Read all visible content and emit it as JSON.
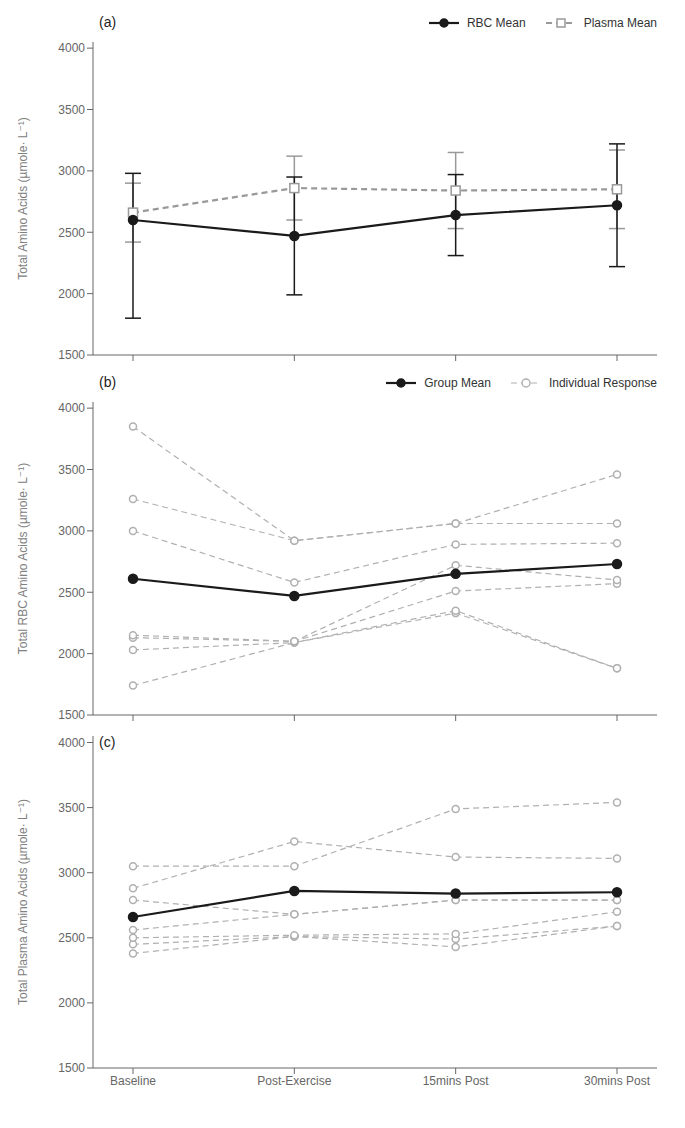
{
  "chart_data": [
    {
      "type": "line",
      "annotations": [
        "(a)"
      ],
      "y_label": "Total Amino Acids (µmole· L⁻¹)",
      "categories": [
        null,
        null,
        null,
        null
      ],
      "ylim": [
        1500,
        4050
      ],
      "yticks": [
        1500,
        2000,
        2500,
        3000,
        3500,
        4000
      ],
      "grid": false,
      "legend": "upper right",
      "series": [
        {
          "name": "RBC Mean",
          "color": "#1a1a1a",
          "marker": "circle",
          "line_style": "solid",
          "values": [
            2600,
            2470,
            2640,
            2720
          ],
          "err_lo": [
            800,
            480,
            330,
            500
          ],
          "err_hi": [
            380,
            480,
            330,
            500
          ]
        },
        {
          "name": "Plasma Mean",
          "color": "#999999",
          "marker": "open_square",
          "line_style": "dashed",
          "values": [
            2660,
            2860,
            2840,
            2850
          ],
          "err_lo": [
            240,
            260,
            310,
            320
          ],
          "err_hi": [
            240,
            260,
            310,
            320
          ]
        }
      ]
    },
    {
      "type": "line",
      "annotations": [
        "(b)"
      ],
      "y_label": "Total RBC Amino Acids (µmole· L⁻¹)",
      "categories": [
        null,
        null,
        null,
        null
      ],
      "ylim": [
        1500,
        4050
      ],
      "yticks": [
        1500,
        2000,
        2500,
        3000,
        3500,
        4000
      ],
      "grid": false,
      "legend": "upper right",
      "series": [
        {
          "name": "Group Mean",
          "color": "#1a1a1a",
          "marker": "circle",
          "line_style": "solid",
          "values": [
            2610,
            2470,
            2650,
            2730
          ]
        },
        {
          "name": "Individual Response",
          "color": "#b0b0b0",
          "marker": "open_circle",
          "line_style": "dashed",
          "values": [
            3850,
            2920,
            3060,
            3460
          ]
        },
        {
          "name": "Individual Response",
          "color": "#b0b0b0",
          "marker": "open_circle",
          "line_style": "dashed",
          "values": [
            3260,
            2920,
            3060,
            3060
          ]
        },
        {
          "name": "Individual Response",
          "color": "#b0b0b0",
          "marker": "open_circle",
          "line_style": "dashed",
          "values": [
            3000,
            2580,
            2890,
            2900
          ]
        },
        {
          "name": "Individual Response",
          "color": "#b0b0b0",
          "marker": "open_circle",
          "line_style": "dashed",
          "values": [
            2150,
            2100,
            2720,
            2600
          ]
        },
        {
          "name": "Individual Response",
          "color": "#b0b0b0",
          "marker": "open_circle",
          "line_style": "dashed",
          "values": [
            2130,
            2100,
            2510,
            2570
          ]
        },
        {
          "name": "Individual Response",
          "color": "#b0b0b0",
          "marker": "open_circle",
          "line_style": "dashed",
          "values": [
            2030,
            2090,
            2350,
            1880
          ]
        },
        {
          "name": "Individual Response",
          "color": "#b0b0b0",
          "marker": "open_circle",
          "line_style": "dashed",
          "values": [
            1740,
            2090,
            2330,
            1880
          ]
        }
      ]
    },
    {
      "type": "line",
      "annotations": [
        "(c)"
      ],
      "y_label": "Total Plasma Amino Acids (µmole· L⁻¹)",
      "categories": [
        "Baseline",
        "Post-Exercise",
        "15mins Post",
        "30mins Post"
      ],
      "ylim": [
        1500,
        4050
      ],
      "yticks": [
        1500,
        2000,
        2500,
        3000,
        3500,
        4000
      ],
      "grid": false,
      "series": [
        {
          "color": "#1a1a1a",
          "marker": "circle",
          "line_style": "solid",
          "values": [
            2660,
            2860,
            2840,
            2850
          ]
        },
        {
          "color": "#b0b0b0",
          "marker": "open_circle",
          "line_style": "dashed",
          "values": [
            3050,
            3050,
            3490,
            3540
          ]
        },
        {
          "color": "#b0b0b0",
          "marker": "open_circle",
          "line_style": "dashed",
          "values": [
            2880,
            3240,
            3120,
            3110
          ]
        },
        {
          "color": "#b0b0b0",
          "marker": "open_circle",
          "line_style": "dashed",
          "values": [
            2790,
            2680,
            2790,
            2790
          ]
        },
        {
          "color": "#b0b0b0",
          "marker": "open_circle",
          "line_style": "dashed",
          "values": [
            2560,
            2680,
            2790,
            2790
          ]
        },
        {
          "color": "#b0b0b0",
          "marker": "open_circle",
          "line_style": "dashed",
          "values": [
            2500,
            2520,
            2530,
            2700
          ]
        },
        {
          "color": "#b0b0b0",
          "marker": "open_circle",
          "line_style": "dashed",
          "values": [
            2450,
            2510,
            2490,
            2590
          ]
        },
        {
          "color": "#b0b0b0",
          "marker": "open_circle",
          "line_style": "dashed",
          "values": [
            2380,
            2510,
            2430,
            2590
          ]
        }
      ]
    }
  ]
}
